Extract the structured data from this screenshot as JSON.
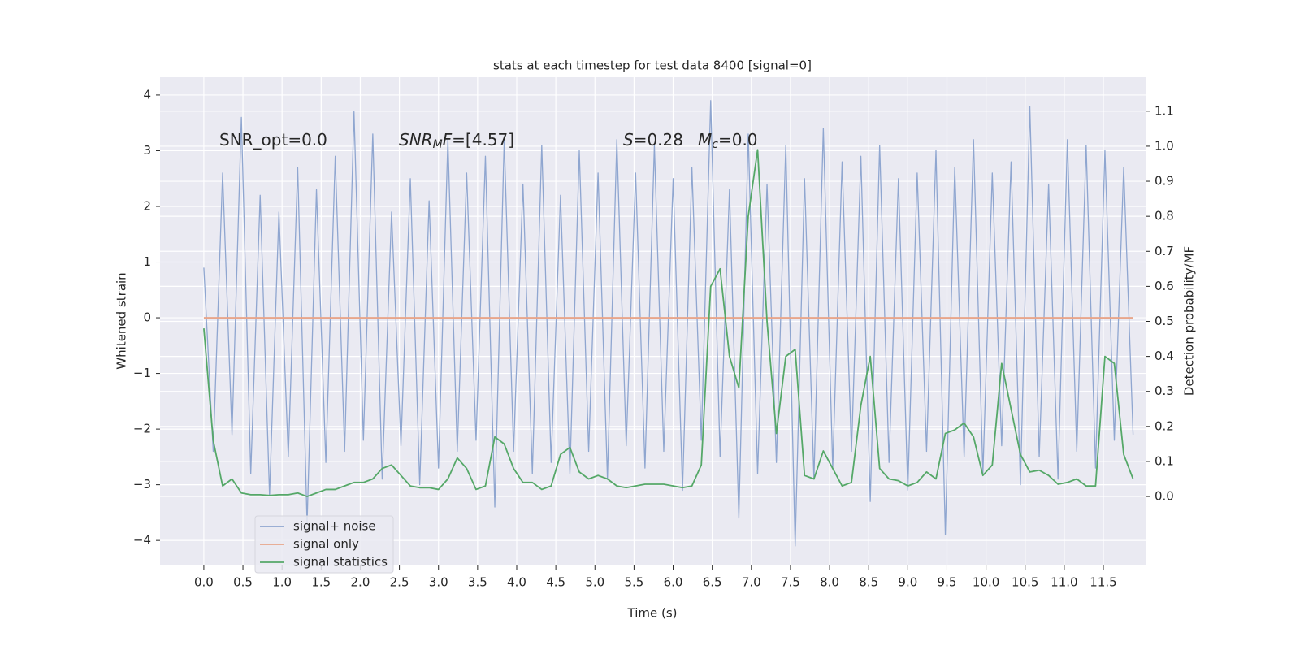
{
  "chart_data": {
    "type": "line",
    "title": "stats at each timestep for test data 8400 [signal=0]",
    "xlabel": "Time (s)",
    "ylabel": "Whitened strain",
    "y2label": "Detection probability/MF",
    "xlim": [
      -0.56,
      12.04
    ],
    "ylim": [
      -4.45,
      4.32
    ],
    "y2lim": [
      -0.197,
      1.197
    ],
    "xticks": [
      {
        "value": 0,
        "label": "0.0"
      },
      0.5,
      {
        "value": 1,
        "label": "1.0"
      },
      1.5,
      {
        "value": 2,
        "label": "2.0"
      },
      2.5,
      {
        "value": 3,
        "label": "3.0"
      },
      3.5,
      {
        "value": 4,
        "label": "4.0"
      },
      4.5,
      {
        "value": 5,
        "label": "5.0"
      },
      5.5,
      {
        "value": 6,
        "label": "6.0"
      },
      6.5,
      {
        "value": 7,
        "label": "7.0"
      },
      7.5,
      {
        "value": 8,
        "label": "8.0"
      },
      8.5,
      {
        "value": 9,
        "label": "9.0"
      },
      9.5,
      {
        "value": 10,
        "label": "10.0"
      },
      10.5,
      {
        "value": 11,
        "label": "11.0"
      },
      11.5
    ],
    "yticks": [
      {
        "value": -4,
        "label": "−4"
      },
      {
        "value": -3,
        "label": "−3"
      },
      {
        "value": -2,
        "label": "−2"
      },
      {
        "value": -1,
        "label": "−1"
      },
      0,
      1,
      2,
      3,
      4
    ],
    "y2ticks": [
      {
        "value": 0,
        "label": "0.0"
      },
      0.1,
      0.2,
      0.3,
      0.4,
      0.5,
      0.6,
      0.7,
      0.8,
      0.9,
      {
        "value": 1,
        "label": "1.0"
      },
      1.1
    ],
    "grid": true,
    "legend": "lower left",
    "x": [
      0,
      0.12,
      0.24,
      0.36,
      0.48,
      0.6,
      0.72,
      0.84,
      0.96,
      1.08,
      1.2,
      1.32,
      1.44,
      1.56,
      1.68,
      1.8,
      1.92,
      2.04,
      2.16,
      2.28,
      2.4,
      2.52,
      2.64,
      2.76,
      2.88,
      3,
      3.12,
      3.24,
      3.36,
      3.48,
      3.6,
      3.72,
      3.84,
      3.96,
      4.08,
      4.2,
      4.32,
      4.44,
      4.56,
      4.68,
      4.8,
      4.92,
      5.04,
      5.16,
      5.28,
      5.4,
      5.52,
      5.64,
      5.76,
      5.88,
      6,
      6.12,
      6.24,
      6.36,
      6.48,
      6.6,
      6.72,
      6.84,
      6.96,
      7.08,
      7.2,
      7.32,
      7.44,
      7.56,
      7.68,
      7.8,
      7.92,
      8.04,
      8.16,
      8.28,
      8.4,
      8.52,
      8.64,
      8.76,
      8.88,
      9,
      9.12,
      9.24,
      9.36,
      9.48,
      9.6,
      9.72,
      9.84,
      9.96,
      10.08,
      10.2,
      10.32,
      10.44,
      10.56,
      10.68,
      10.8,
      10.92,
      11.04,
      11.16,
      11.28,
      11.4,
      11.52,
      11.64,
      11.76,
      11.88
    ],
    "series": [
      {
        "name": "signal+ noise",
        "color": "#8fa6d0",
        "axis": "y",
        "values": [
          0.9,
          -2.4,
          2.6,
          -2.1,
          3.6,
          -2.8,
          2.2,
          -3.2,
          1.9,
          -2.5,
          2.7,
          -3.7,
          2.3,
          -2.6,
          2.9,
          -2.4,
          3.7,
          -2.2,
          3.3,
          -2.9,
          1.9,
          -2.3,
          2.5,
          -3.0,
          2.1,
          -2.7,
          3.2,
          -2.4,
          2.6,
          -2.2,
          2.9,
          -3.4,
          3.2,
          -2.4,
          2.4,
          -2.8,
          3.1,
          -2.6,
          2.2,
          -2.8,
          3.0,
          -2.4,
          2.6,
          -2.9,
          3.2,
          -2.3,
          2.6,
          -2.7,
          3.1,
          -2.4,
          2.5,
          -3.1,
          2.7,
          -2.2,
          3.9,
          -2.5,
          2.3,
          -3.6,
          3.3,
          -2.8,
          2.4,
          -2.6,
          3.1,
          -4.1,
          2.5,
          -2.9,
          3.4,
          -2.7,
          2.8,
          -2.4,
          2.9,
          -3.3,
          3.1,
          -2.6,
          2.5,
          -3.1,
          2.6,
          -2.4,
          3.0,
          -3.9,
          2.7,
          -2.5,
          3.2,
          -2.8,
          2.6,
          -2.3,
          2.8,
          -3.0,
          3.8,
          -2.5,
          2.4,
          -2.9,
          3.2,
          -2.4,
          3.1,
          -2.7,
          3.0,
          -2.2,
          2.7,
          -2.1
        ]
      },
      {
        "name": "signal only",
        "color": "#e8a58a",
        "axis": "y",
        "values": [
          0,
          0,
          0,
          0,
          0,
          0,
          0,
          0,
          0,
          0,
          0,
          0,
          0,
          0,
          0,
          0,
          0,
          0,
          0,
          0,
          0,
          0,
          0,
          0,
          0,
          0,
          0,
          0,
          0,
          0,
          0,
          0,
          0,
          0,
          0,
          0,
          0,
          0,
          0,
          0,
          0,
          0,
          0,
          0,
          0,
          0,
          0,
          0,
          0,
          0,
          0,
          0,
          0,
          0,
          0,
          0,
          0,
          0,
          0,
          0,
          0,
          0,
          0,
          0,
          0,
          0,
          0,
          0,
          0,
          0,
          0,
          0,
          0,
          0,
          0,
          0,
          0,
          0,
          0,
          0,
          0,
          0,
          0,
          0,
          0,
          0,
          0,
          0,
          0,
          0,
          0,
          0,
          0,
          0,
          0,
          0,
          0,
          0,
          0,
          0
        ]
      },
      {
        "name": "signal statistics",
        "color": "#55a868",
        "axis": "y2",
        "values": [
          0.48,
          0.16,
          0.03,
          0.05,
          0.01,
          0.005,
          0.005,
          0.003,
          0.005,
          0.005,
          0.01,
          0.0,
          0.01,
          0.02,
          0.02,
          0.03,
          0.04,
          0.04,
          0.05,
          0.08,
          0.09,
          0.06,
          0.03,
          0.025,
          0.025,
          0.02,
          0.05,
          0.11,
          0.08,
          0.02,
          0.03,
          0.17,
          0.15,
          0.08,
          0.04,
          0.04,
          0.02,
          0.03,
          0.12,
          0.14,
          0.07,
          0.05,
          0.06,
          0.05,
          0.03,
          0.025,
          0.03,
          0.035,
          0.035,
          0.035,
          0.03,
          0.025,
          0.03,
          0.09,
          0.6,
          0.65,
          0.4,
          0.31,
          0.8,
          0.99,
          0.5,
          0.18,
          0.4,
          0.42,
          0.06,
          0.05,
          0.13,
          0.08,
          0.03,
          0.04,
          0.26,
          0.4,
          0.08,
          0.05,
          0.045,
          0.03,
          0.04,
          0.07,
          0.05,
          0.18,
          0.19,
          0.21,
          0.17,
          0.06,
          0.09,
          0.38,
          0.25,
          0.12,
          0.07,
          0.075,
          0.06,
          0.035,
          0.04,
          0.05,
          0.03,
          0.03,
          0.4,
          0.38,
          0.12,
          0.05
        ]
      }
    ],
    "annotations": [
      [
        {
          "text": "SNR_opt=0.0"
        }
      ],
      [
        {
          "text": "SNR",
          "italic": true
        },
        {
          "text": "M",
          "italic": true,
          "sub": true
        },
        {
          "text": "F",
          "italic": true
        },
        {
          "text": "=[4.57]"
        }
      ],
      [
        {
          "text": "S",
          "italic": true
        },
        {
          "text": "=0.28"
        }
      ],
      [
        {
          "text": "M",
          "italic": true
        },
        {
          "text": "c",
          "italic": true,
          "sub": true
        },
        {
          "text": "=0.0"
        }
      ]
    ]
  }
}
